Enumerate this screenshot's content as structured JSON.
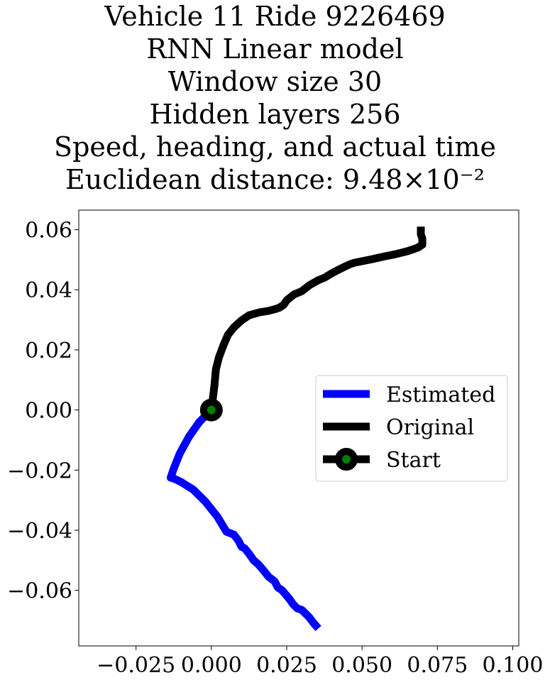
{
  "chart_data": {
    "type": "line",
    "title_lines": [
      "Vehicle 11 Ride 9226469",
      "RNN Linear model",
      "Window size 30",
      "Hidden layers 256",
      "Speed, heading, and actual time",
      "Euclidean distance: 9.48×10⁻²"
    ],
    "xlabel": "",
    "ylabel": "",
    "xlim": [
      -0.044,
      0.102
    ],
    "ylim": [
      -0.0785,
      0.0665
    ],
    "x_ticks": [
      {
        "value": -0.025,
        "label": "−0.025"
      },
      {
        "value": 0.0,
        "label": "0.000"
      },
      {
        "value": 0.025,
        "label": "0.025"
      },
      {
        "value": 0.05,
        "label": "0.050"
      },
      {
        "value": 0.075,
        "label": "0.075"
      },
      {
        "value": 0.1,
        "label": "0.100"
      }
    ],
    "y_ticks": [
      {
        "value": 0.06,
        "label": "0.06"
      },
      {
        "value": 0.04,
        "label": "0.04"
      },
      {
        "value": 0.02,
        "label": "0.02"
      },
      {
        "value": 0.0,
        "label": "0.00"
      },
      {
        "value": -0.02,
        "label": "−0.02"
      },
      {
        "value": -0.04,
        "label": "−0.04"
      },
      {
        "value": -0.06,
        "label": "−0.06"
      }
    ],
    "grid": false,
    "legend_position": "center-right",
    "series": [
      {
        "name": "Estimated",
        "color": "#0000ff",
        "x": [
          0.0,
          -0.004,
          -0.0075,
          -0.0105,
          -0.0125,
          -0.0135,
          -0.0125,
          -0.01,
          -0.006,
          -0.002,
          0.002,
          0.005,
          0.0075,
          0.009,
          0.01,
          0.011,
          0.0125,
          0.014,
          0.0155,
          0.017,
          0.019,
          0.021,
          0.022,
          0.0235,
          0.025,
          0.026,
          0.027,
          0.0285,
          0.03,
          0.031,
          0.0325,
          0.034,
          0.0355
        ],
        "y": [
          0.0,
          -0.004,
          -0.009,
          -0.0145,
          -0.0195,
          -0.0225,
          -0.0228,
          -0.024,
          -0.0265,
          -0.0305,
          -0.0355,
          -0.0405,
          -0.0415,
          -0.0435,
          -0.0455,
          -0.046,
          -0.0478,
          -0.05,
          -0.0513,
          -0.053,
          -0.0555,
          -0.057,
          -0.059,
          -0.06,
          -0.0618,
          -0.063,
          -0.0645,
          -0.066,
          -0.0665,
          -0.0675,
          -0.069,
          -0.071,
          -0.0727
        ]
      },
      {
        "name": "Original",
        "color": "#000000",
        "x": [
          0.0,
          0.0005,
          0.001,
          0.0015,
          0.0025,
          0.004,
          0.0055,
          0.0075,
          0.01,
          0.0125,
          0.016,
          0.019,
          0.021,
          0.0225,
          0.024,
          0.025,
          0.0275,
          0.03,
          0.0325,
          0.0355,
          0.0375,
          0.04,
          0.0425,
          0.0445,
          0.046,
          0.0475,
          0.05,
          0.0535,
          0.057,
          0.061,
          0.065,
          0.0685,
          0.07,
          0.07,
          0.0695,
          0.0695
        ],
        "y": [
          0.0,
          0.004,
          0.008,
          0.0135,
          0.0175,
          0.0215,
          0.025,
          0.0275,
          0.0298,
          0.0315,
          0.0325,
          0.033,
          0.0335,
          0.034,
          0.035,
          0.0365,
          0.0385,
          0.0395,
          0.0415,
          0.0432,
          0.044,
          0.0455,
          0.0468,
          0.0478,
          0.0485,
          0.049,
          0.0495,
          0.0502,
          0.051,
          0.0518,
          0.0528,
          0.054,
          0.055,
          0.057,
          0.0585,
          0.061
        ]
      }
    ],
    "start_point": {
      "name": "Start",
      "x": 0.0,
      "y": 0.0,
      "marker_color": "#008000",
      "edge_color": "#000000"
    }
  }
}
